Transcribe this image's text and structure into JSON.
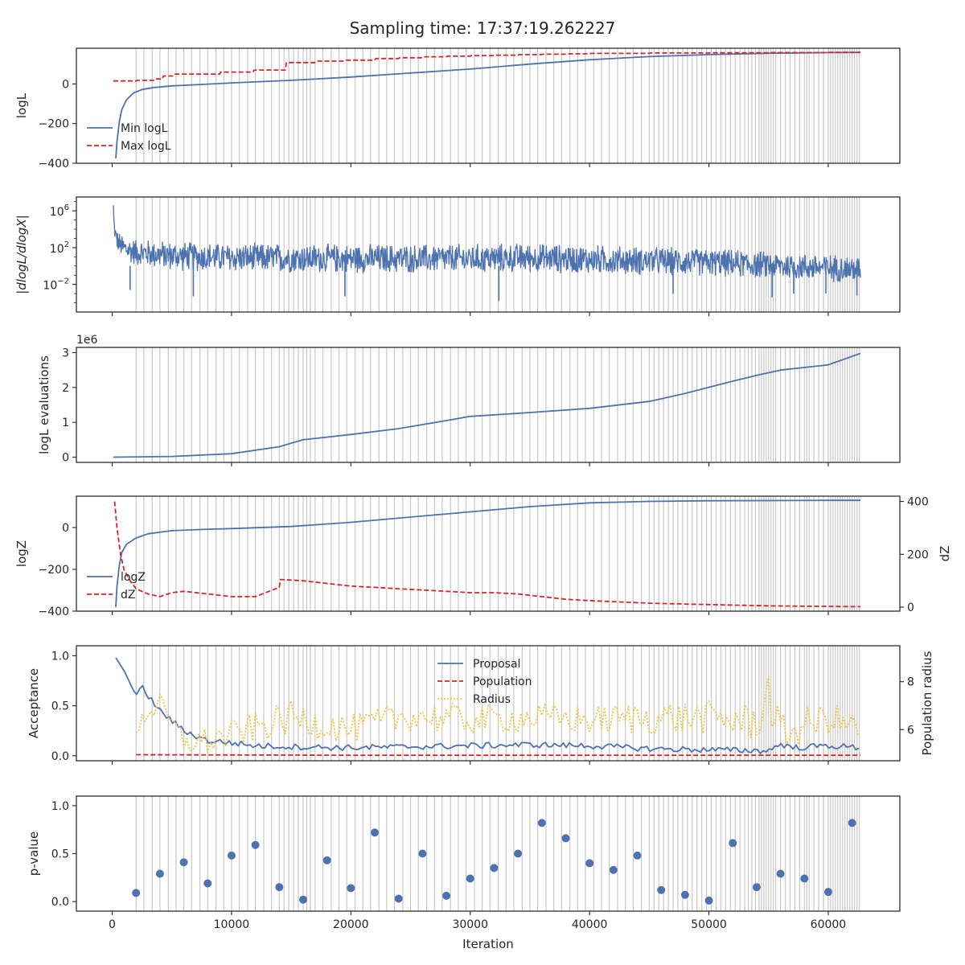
{
  "title": "Sampling time: 17:37:19.262227",
  "colors": {
    "blue": "#4c72b0",
    "red": "#d62728",
    "yellow": "#f0c542",
    "grid": "#c8c8c8",
    "axis": "#262626"
  },
  "chart_data": [
    {
      "id": "logl",
      "type": "line",
      "ylabel": "logL",
      "xlim": [
        -3000,
        66000
      ],
      "ylim": [
        -400,
        180
      ],
      "yticks": [
        -400,
        -200,
        0
      ],
      "ytick_labels": [
        "−400",
        "−200",
        "0"
      ],
      "legend": {
        "placement": "lower-left",
        "entries": [
          "Min logL",
          "Max logL"
        ]
      },
      "series": [
        {
          "name": "Min logL",
          "color": "blue",
          "style": "solid",
          "x": [
            300,
            400,
            600,
            800,
            1200,
            1800,
            2500,
            3500,
            5000,
            7000,
            10000,
            15000,
            20000,
            25000,
            30000,
            35000,
            40000,
            45000,
            50000,
            55000,
            60000,
            62700
          ],
          "y": [
            -375,
            -290,
            -190,
            -130,
            -80,
            -45,
            -28,
            -18,
            -10,
            -4,
            5,
            18,
            35,
            55,
            75,
            100,
            122,
            138,
            148,
            155,
            158,
            159
          ]
        },
        {
          "name": "Max logL",
          "color": "red",
          "style": "dashed",
          "x": [
            100,
            2000,
            2100,
            3500,
            3600,
            4200,
            4300,
            5200,
            5300,
            9000,
            9100,
            11800,
            11900,
            14500,
            14600,
            17000,
            17100,
            19500,
            19600,
            22000,
            22100,
            24000,
            24100,
            26000,
            26100,
            28000,
            28100,
            30000,
            30100,
            32000,
            32100,
            34000,
            34100,
            36000,
            36100,
            38000,
            38100,
            40000,
            40100,
            45000,
            45100,
            50000,
            50100,
            55000,
            55100,
            60000,
            60100,
            62700
          ],
          "y": [
            15,
            15,
            18,
            18,
            25,
            25,
            40,
            40,
            50,
            50,
            60,
            60,
            70,
            70,
            108,
            108,
            115,
            115,
            120,
            120,
            128,
            128,
            132,
            132,
            137,
            137,
            140,
            140,
            143,
            143,
            145,
            145,
            148,
            148,
            150,
            150,
            152,
            152,
            154,
            154,
            156,
            156,
            157,
            157,
            158,
            158,
            159,
            159
          ]
        }
      ]
    },
    {
      "id": "gradient",
      "type": "line",
      "ylabel": "|dlogL/dlogX|",
      "yscale": "log",
      "xlim": [
        -3000,
        66000
      ],
      "ylim_log10": [
        -5,
        7.5
      ],
      "yticks_log10": [
        -2,
        2,
        6
      ],
      "ytick_base": "10",
      "ytick_exps": [
        "−2",
        "2",
        "6"
      ],
      "series": [
        {
          "name": "",
          "color": "blue",
          "style": "solid",
          "noisy": true,
          "x": [
            100,
            150,
            250,
            400,
            700,
            1200,
            2000,
            5000,
            10000,
            20000,
            30000,
            35000,
            40000,
            50000,
            55000,
            60000,
            62700
          ],
          "center_log10": [
            6.5,
            4.5,
            3.5,
            2.8,
            2.2,
            1.8,
            1.5,
            1.1,
            0.9,
            0.8,
            0.8,
            0.9,
            0.7,
            0.4,
            0.1,
            -0.2,
            -0.4
          ],
          "spread_log10": [
            0.5,
            0.8,
            1.0,
            1.2,
            1.4,
            1.5,
            1.6,
            1.7,
            1.7,
            1.7,
            1.7,
            1.7,
            1.7,
            1.6,
            1.6,
            1.6,
            1.6
          ],
          "spikes": [
            [
              1500,
              -2.6
            ],
            [
              6800,
              -3.3
            ],
            [
              19500,
              -3.3
            ],
            [
              32400,
              -3.8
            ],
            [
              47000,
              -3.0
            ],
            [
              55300,
              -3.4
            ],
            [
              57100,
              -3.0
            ],
            [
              59800,
              -3.0
            ],
            [
              62400,
              -3.2
            ]
          ]
        }
      ]
    },
    {
      "id": "evals",
      "type": "line",
      "ylabel": "logL evaluations",
      "offset_text": "1e6",
      "xlim": [
        -3000,
        66000
      ],
      "ylim": [
        -0.15,
        3.15
      ],
      "yticks": [
        0,
        1,
        2,
        3
      ],
      "ytick_labels": [
        "0",
        "1",
        "2",
        "3"
      ],
      "series": [
        {
          "name": "",
          "color": "blue",
          "style": "solid",
          "x": [
            100,
            5000,
            10000,
            14000,
            16000,
            20000,
            24000,
            28000,
            30000,
            35000,
            40000,
            45000,
            48000,
            52000,
            54000,
            56000,
            60000,
            62700
          ],
          "y": [
            0,
            0.02,
            0.1,
            0.3,
            0.5,
            0.65,
            0.82,
            1.05,
            1.17,
            1.28,
            1.4,
            1.6,
            1.83,
            2.18,
            2.35,
            2.5,
            2.65,
            2.98
          ]
        }
      ]
    },
    {
      "id": "logz",
      "type": "line",
      "ylabel": "logZ",
      "ylabel_right": "dZ",
      "xlim": [
        -3000,
        66000
      ],
      "ylim": [
        -400,
        150
      ],
      "yticks": [
        -400,
        -200,
        0
      ],
      "ytick_labels": [
        "−400",
        "−200",
        "0"
      ],
      "ylim_right": [
        -15,
        420
      ],
      "yticks_right": [
        0,
        200,
        400
      ],
      "ytick_labels_right": [
        "0",
        "200",
        "400"
      ],
      "legend": {
        "placement": "lower-left",
        "entries": [
          "logZ",
          "dZ"
        ]
      },
      "series": [
        {
          "name": "logZ",
          "color": "blue",
          "style": "solid",
          "axis": "left",
          "x": [
            300,
            400,
            600,
            800,
            1200,
            2000,
            3000,
            5000,
            8000,
            10000,
            15000,
            20000,
            25000,
            30000,
            35000,
            40000,
            45000,
            50000,
            55000,
            60000,
            62700
          ],
          "y": [
            -380,
            -280,
            -180,
            -120,
            -80,
            -50,
            -30,
            -15,
            -8,
            -5,
            5,
            25,
            50,
            75,
            100,
            118,
            125,
            128,
            129,
            130,
            130
          ]
        },
        {
          "name": "dZ",
          "color": "red",
          "style": "dashed",
          "axis": "right",
          "x": [
            200,
            400,
            700,
            1000,
            1500,
            2000,
            3000,
            4000,
            5000,
            6000,
            8000,
            10000,
            12000,
            14000,
            14100,
            16000,
            18000,
            20000,
            22000,
            24000,
            26000,
            28000,
            30000,
            32000,
            34000,
            36000,
            38000,
            40000,
            45000,
            50000,
            55000,
            60000,
            62700
          ],
          "y": [
            400,
            300,
            200,
            140,
            100,
            70,
            50,
            40,
            55,
            60,
            50,
            40,
            40,
            75,
            105,
            100,
            90,
            80,
            75,
            70,
            65,
            60,
            55,
            55,
            50,
            40,
            30,
            25,
            15,
            10,
            5,
            3,
            2
          ]
        }
      ]
    },
    {
      "id": "acceptance",
      "type": "line",
      "ylabel": "Acceptance",
      "ylabel_right": "Population radius",
      "xlim": [
        -3000,
        66000
      ],
      "ylim": [
        -0.05,
        1.1
      ],
      "yticks": [
        0,
        0.5,
        1
      ],
      "ytick_labels": [
        "0.0",
        "0.5",
        "1.0"
      ],
      "ylim_right": [
        4.7,
        9.5
      ],
      "yticks_right": [
        6,
        8
      ],
      "ytick_labels_right": [
        "6",
        "8"
      ],
      "legend": {
        "placement": "upper-center",
        "entries": [
          "Proposal",
          "Population",
          "Radius"
        ]
      },
      "series": [
        {
          "name": "Proposal",
          "color": "blue",
          "style": "solid",
          "axis": "left",
          "x": [
            300,
            1000,
            2000,
            2500,
            3000,
            4000,
            5000,
            6000,
            8000,
            10000,
            12000,
            15000,
            20000,
            25000,
            30000,
            35000,
            40000,
            45000,
            50000,
            55000,
            56000,
            57000,
            60000,
            62700
          ],
          "y": [
            0.98,
            0.85,
            0.6,
            0.68,
            0.6,
            0.45,
            0.35,
            0.25,
            0.15,
            0.13,
            0.1,
            0.09,
            0.08,
            0.09,
            0.1,
            0.11,
            0.1,
            0.07,
            0.06,
            0.05,
            0.12,
            0.08,
            0.1,
            0.08
          ]
        },
        {
          "name": "Population",
          "color": "red",
          "style": "dashed",
          "axis": "left",
          "x": [
            2000,
            20000,
            40000,
            62700
          ],
          "y": [
            0.01,
            0.005,
            0.005,
            0.005
          ]
        },
        {
          "name": "Radius",
          "color": "yellow",
          "style": "dotted",
          "axis": "right",
          "noisy": true,
          "x": [
            2000,
            3000,
            4000,
            6000,
            8000,
            10000,
            15000,
            20000,
            25000,
            30000,
            35000,
            40000,
            45000,
            50000,
            54000,
            55000,
            56000,
            60000,
            62700
          ],
          "center": [
            6.0,
            6.8,
            7.0,
            5.5,
            5.5,
            5.8,
            6.5,
            6.0,
            6.6,
            6.4,
            6.5,
            6.4,
            6.5,
            6.5,
            6.3,
            7.5,
            5.8,
            6.5,
            6.0
          ],
          "spread": [
            0.3,
            0.5,
            0.5,
            0.5,
            0.6,
            0.6,
            0.7,
            0.6,
            0.7,
            0.6,
            0.6,
            0.6,
            0.7,
            0.7,
            0.8,
            1.2,
            0.8,
            0.7,
            0.6
          ]
        }
      ]
    },
    {
      "id": "pvalue",
      "type": "scatter",
      "ylabel": "p-value",
      "xlabel": "Iteration",
      "xlim": [
        -3000,
        66000
      ],
      "ylim": [
        -0.1,
        1.1
      ],
      "yticks": [
        0,
        0.5,
        1
      ],
      "ytick_labels": [
        "0.0",
        "0.5",
        "1.0"
      ],
      "xticks": [
        0,
        10000,
        20000,
        30000,
        40000,
        50000,
        60000
      ],
      "xtick_labels": [
        "0",
        "10000",
        "20000",
        "30000",
        "40000",
        "50000",
        "60000"
      ],
      "series": [
        {
          "name": "",
          "color": "blue",
          "x": [
            2000,
            4000,
            6000,
            8000,
            10000,
            12000,
            14000,
            16000,
            18000,
            20000,
            22000,
            24000,
            26000,
            28000,
            30000,
            32000,
            34000,
            36000,
            38000,
            40000,
            42000,
            44000,
            46000,
            48000,
            50000,
            52000,
            54000,
            56000,
            58000,
            60000,
            62000
          ],
          "y": [
            0.09,
            0.29,
            0.41,
            0.19,
            0.48,
            0.59,
            0.15,
            0.02,
            0.43,
            0.14,
            0.72,
            0.03,
            0.5,
            0.06,
            0.24,
            0.35,
            0.5,
            0.82,
            0.66,
            0.4,
            0.33,
            0.48,
            0.12,
            0.07,
            0.01,
            0.61,
            0.15,
            0.29,
            0.24,
            0.1,
            0.82
          ]
        }
      ]
    }
  ],
  "vertical_lines": [
    2000,
    2650,
    3350,
    4000,
    4700,
    5350,
    6000,
    6650,
    7350,
    8000,
    8700,
    9350,
    10000,
    10650,
    11350,
    12000,
    12700,
    13350,
    14000,
    14400,
    14800,
    15200,
    15600,
    16000,
    16300,
    16600,
    17000,
    17650,
    18350,
    19000,
    19650,
    20350,
    21000,
    21650,
    22350,
    23000,
    23650,
    24350,
    25000,
    25650,
    26350,
    27000,
    27650,
    28350,
    29000,
    29650,
    30350,
    31000,
    31650,
    32350,
    33000,
    33650,
    34350,
    35000,
    35650,
    36350,
    37000,
    37650,
    38350,
    39000,
    39650,
    40350,
    41000,
    41650,
    42350,
    43000,
    43650,
    44350,
    45000,
    45400,
    45800,
    46200,
    46600,
    47000,
    47400,
    47800,
    48200,
    48600,
    49000,
    49400,
    49800,
    50200,
    50600,
    51000,
    51400,
    51800,
    52200,
    52600,
    53000,
    53300,
    53600,
    53900,
    54200,
    54400,
    54600,
    54800,
    55000,
    55200,
    55400,
    55600,
    56000,
    56400,
    56800,
    57200,
    57600,
    58000,
    58200,
    58400,
    58800,
    59200,
    59600,
    60000,
    60200,
    60400,
    60600,
    60800,
    61000,
    61200,
    61400,
    61600,
    61800,
    62000,
    62200,
    62400,
    62600
  ]
}
